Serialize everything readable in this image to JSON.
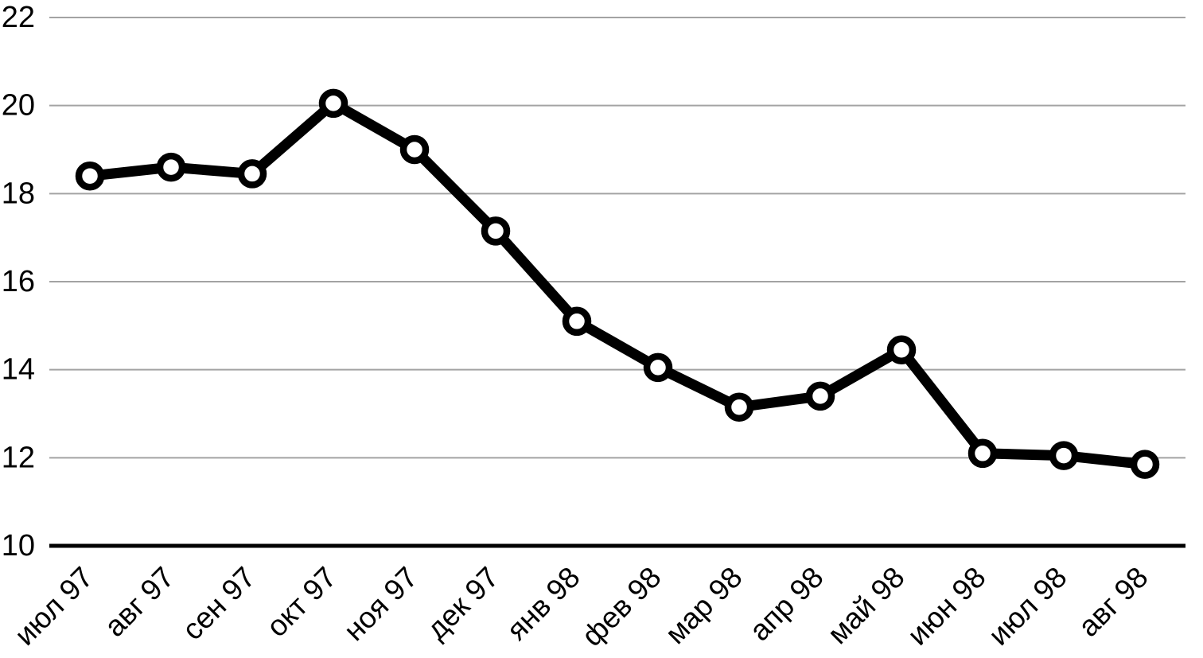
{
  "chart_data": {
    "type": "line",
    "title": "",
    "xlabel": "",
    "ylabel": "",
    "categories": [
      "июл 97",
      "авг 97",
      "сен 97",
      "окт 97",
      "ноя 97",
      "дек 97",
      "янв 98",
      "фев 98",
      "мар 98",
      "апр 98",
      "май 98",
      "июн 98",
      "июл 98",
      "авг 98"
    ],
    "series": [
      {
        "name": "series-1",
        "values": [
          18.4,
          18.6,
          18.45,
          20.05,
          19.0,
          17.15,
          15.1,
          14.05,
          13.15,
          13.4,
          14.45,
          12.1,
          12.05,
          11.85
        ]
      }
    ],
    "ylim": [
      10,
      22
    ],
    "yticks": [
      10,
      12,
      14,
      16,
      18,
      20,
      22
    ],
    "grid": "horizontal",
    "legend_position": "none",
    "marker": "circle-open",
    "colors": {
      "line": "#000000",
      "marker_fill": "#ffffff",
      "marker_stroke": "#000000",
      "gridline": "#a3a3a3",
      "axis_baseline": "#000000",
      "tick_text": "#000000",
      "background": "#ffffff"
    }
  }
}
